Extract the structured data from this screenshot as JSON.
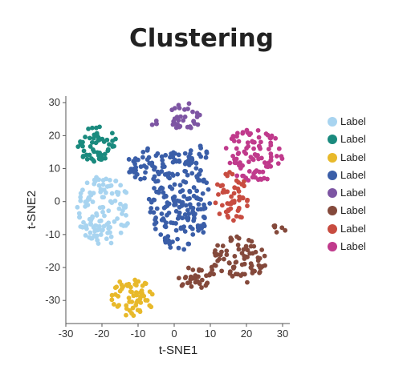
{
  "chart_data": {
    "type": "scatter",
    "title": "Clustering",
    "xlabel": "t-SNE1",
    "ylabel": "t-SNE2",
    "xlim": [
      -30,
      32
    ],
    "ylim": [
      -37,
      32
    ],
    "xticks": [
      -30,
      -20,
      -10,
      0,
      10,
      20,
      30
    ],
    "yticks": [
      -30,
      -20,
      -10,
      0,
      10,
      20,
      30
    ],
    "grid": false,
    "legend_position": "right",
    "series": [
      {
        "name": "Label",
        "color": "#a8d4f0",
        "clusters": [
          {
            "cx": -19.5,
            "cy": -2.5,
            "rx": 7.5,
            "ry": 10.5,
            "n": 120
          }
        ]
      },
      {
        "name": "Label",
        "color": "#1a8a7e",
        "clusters": [
          {
            "cx": -21.5,
            "cy": 17.5,
            "rx": 5.5,
            "ry": 5.5,
            "n": 55
          }
        ]
      },
      {
        "name": "Label",
        "color": "#e8b92a",
        "clusters": [
          {
            "cx": -11.5,
            "cy": -29,
            "rx": 6,
            "ry": 6,
            "n": 60
          }
        ]
      },
      {
        "name": "Label",
        "color": "#3a5ea8",
        "clusters": [
          {
            "cx": 1.5,
            "cy": 0.5,
            "rx": 8.5,
            "ry": 15.5,
            "n": 190
          },
          {
            "cx": -8,
            "cy": 11.5,
            "rx": 5.5,
            "ry": 5,
            "n": 40
          },
          {
            "cx": 6.5,
            "cy": 14,
            "rx": 3,
            "ry": 3,
            "n": 15
          }
        ]
      },
      {
        "name": "Label",
        "color": "#7d55a3",
        "clusters": [
          {
            "cx": 3,
            "cy": 25.5,
            "rx": 4.5,
            "ry": 4.5,
            "n": 32
          },
          {
            "cx": -5.5,
            "cy": 24,
            "rx": 1,
            "ry": 1,
            "n": 4
          }
        ]
      },
      {
        "name": "Label",
        "color": "#84493b",
        "clusters": [
          {
            "cx": 17.5,
            "cy": -18,
            "rx": 8,
            "ry": 7.5,
            "n": 80
          },
          {
            "cx": 5.5,
            "cy": -23,
            "rx": 5,
            "ry": 3.5,
            "n": 35
          },
          {
            "cx": 29,
            "cy": -8,
            "rx": 2,
            "ry": 2,
            "n": 6
          }
        ]
      },
      {
        "name": "Label",
        "color": "#c84c40",
        "clusters": [
          {
            "cx": 16,
            "cy": 1.5,
            "rx": 5,
            "ry": 7.5,
            "n": 55
          }
        ]
      },
      {
        "name": "Label",
        "color": "#c03a8c",
        "clusters": [
          {
            "cx": 22,
            "cy": 14,
            "rx": 8.5,
            "ry": 8.5,
            "n": 95
          }
        ]
      }
    ]
  }
}
